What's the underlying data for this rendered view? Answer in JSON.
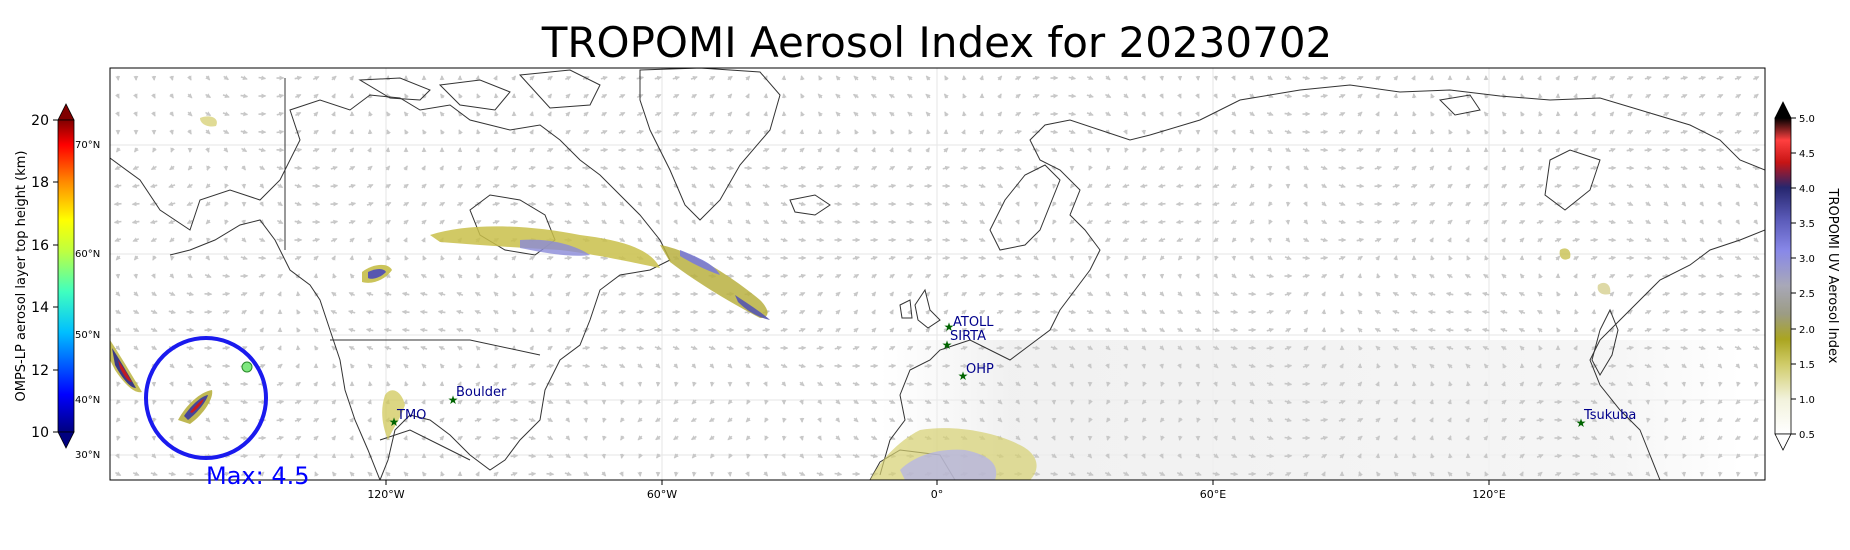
{
  "title": "TROPOMI Aerosol Index for 20230702",
  "left_colorbar": {
    "label": "OMPS-LP aerosol layer top height (km)",
    "ticks": [
      "10",
      "12",
      "14",
      "16",
      "18",
      "20"
    ],
    "colors": [
      "#00007f",
      "#0000ff",
      "#007fff",
      "#00ffff",
      "#7fff7f",
      "#ffff00",
      "#ff7f00",
      "#ff0000",
      "#7f0000"
    ]
  },
  "right_colorbar": {
    "label": "TROPOMI UV Aerosol Index",
    "ticks": [
      "0.5",
      "1.0",
      "1.5",
      "2.0",
      "2.5",
      "3.0",
      "3.5",
      "4.0",
      "4.5",
      "5.0"
    ],
    "colors": [
      "#ffffff",
      "#e3e3b0",
      "#b5b02a",
      "#9a9a6a",
      "#a0a0a0",
      "#8a8ae8",
      "#6464c8",
      "#2a2a7a",
      "#d01818",
      "#000000"
    ]
  },
  "latitude_labels": [
    "70°N",
    "60°N",
    "50°N",
    "40°N",
    "30°N"
  ],
  "longitude_labels": [
    "120°W",
    "60°W",
    "0°",
    "60°E",
    "120°E"
  ],
  "stations": [
    {
      "name": "ATOLL"
    },
    {
      "name": "SIRTA"
    },
    {
      "name": "OHP"
    },
    {
      "name": "Boulder"
    },
    {
      "name": "TMO"
    },
    {
      "name": "Tsukuba"
    }
  ],
  "max_text": "Max: 4.5",
  "colors": {
    "station_marker": "#006400",
    "station_label": "#00008b",
    "highlight_circle": "#1a1aee",
    "max_text": "#0000ff",
    "coastline": "#333333",
    "wind_arrows": "#c8c8c8"
  }
}
